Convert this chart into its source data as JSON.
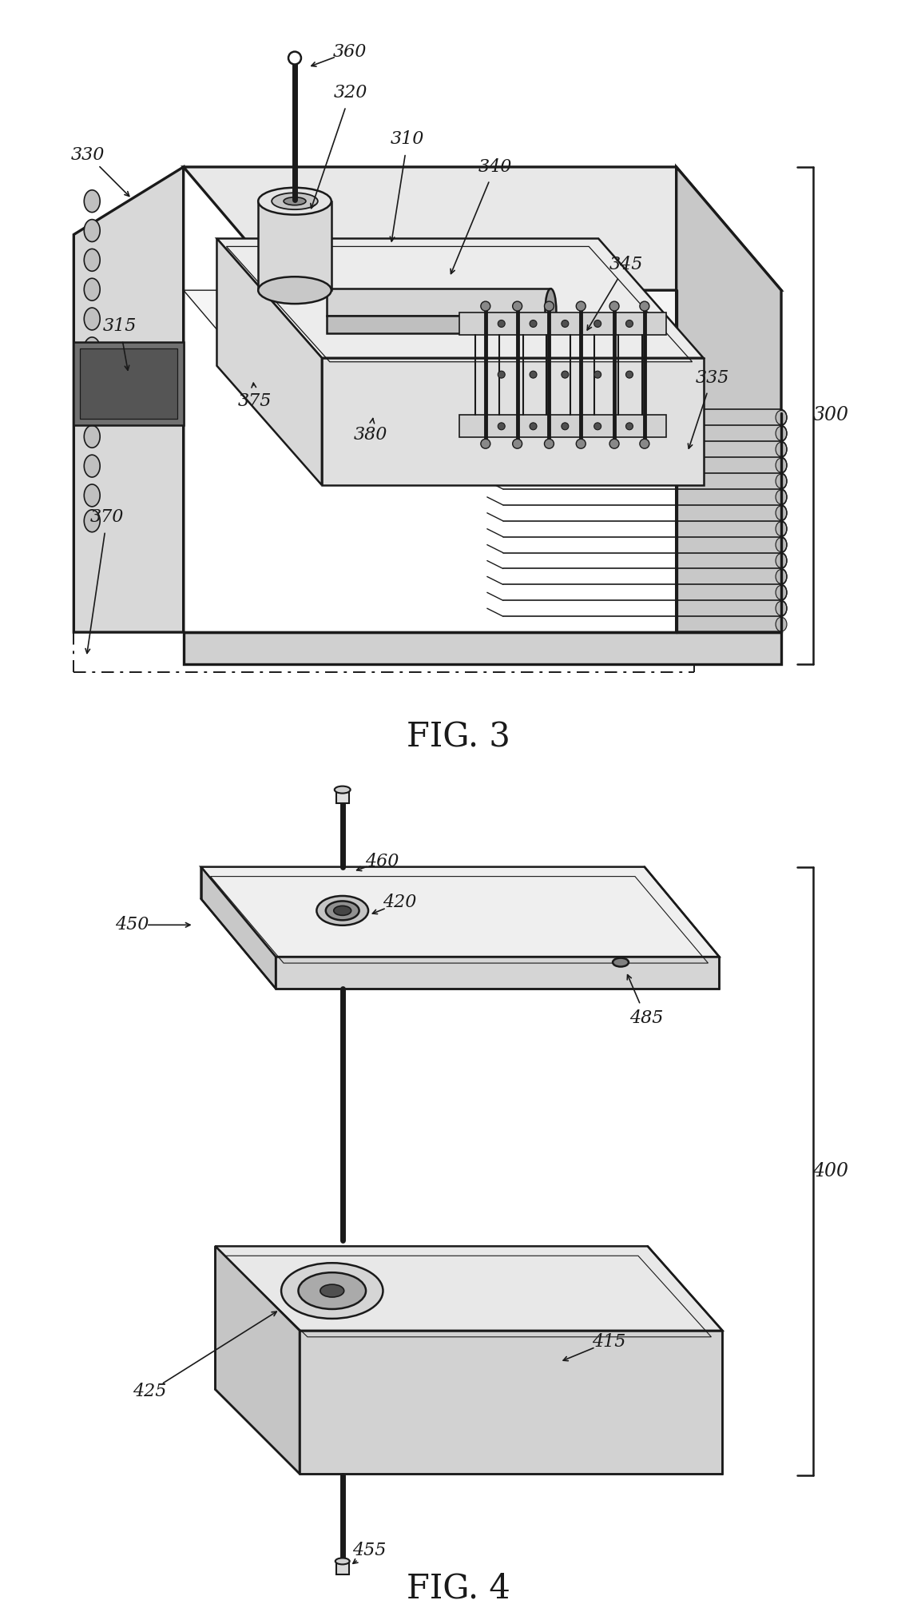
{
  "bg_color": "#ffffff",
  "lc": "#1a1a1a",
  "fig3_title": "FIG. 3",
  "fig4_title": "FIG. 4",
  "lw_main": 1.8,
  "lw_thick": 2.4,
  "lw_thin": 1.0,
  "label_fs": 16,
  "title_fs": 30
}
